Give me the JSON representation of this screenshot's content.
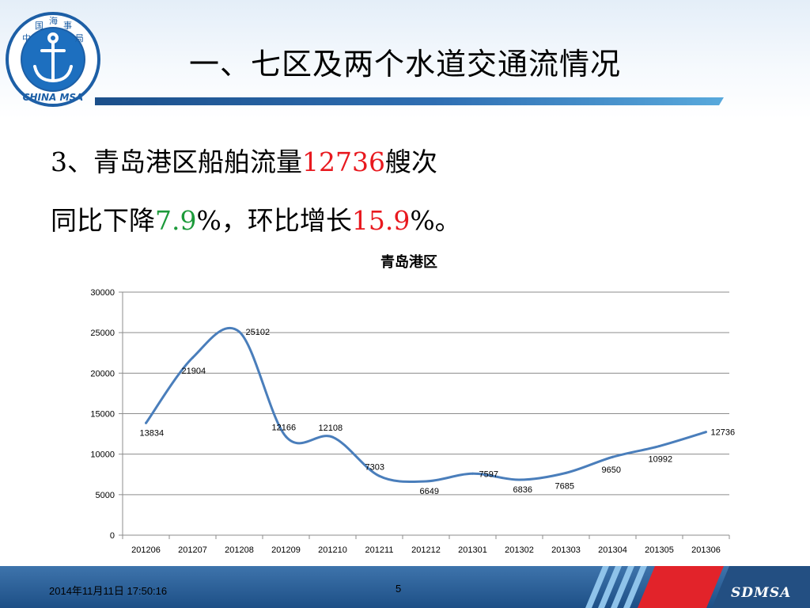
{
  "slide": {
    "title": "一、七区及两个水道交通流情况",
    "logo_text": "CHINA MSA",
    "logo_chars": [
      "中",
      "国",
      "海",
      "事",
      "局"
    ],
    "line1_prefix": "3、青岛港区船舶流量",
    "line1_value": "12736",
    "line1_suffix": "艘次",
    "line2_prefix": "同比下降",
    "line2_value1": "7.9",
    "line2_mid": "%，环比增长",
    "line2_value2": "15.9",
    "line2_suffix": "%。"
  },
  "footer": {
    "date": "2014年11月11日  17:50:16",
    "page": "5",
    "brand": "SDMSA"
  },
  "colors": {
    "accent_red": "#e8191f",
    "accent_green": "#1c9a3a",
    "line_color": "#4a7ebb",
    "footer_blue": "#1d4f86"
  },
  "chart_data": {
    "type": "line",
    "title": "青岛港区",
    "categories": [
      "201206",
      "201207",
      "201208",
      "201209",
      "201210",
      "201211",
      "201212",
      "201301",
      "201302",
      "201303",
      "201304",
      "201305",
      "201306"
    ],
    "values": [
      13834,
      21904,
      25102,
      12166,
      12108,
      7303,
      6649,
      7597,
      6836,
      7685,
      9650,
      10992,
      12736
    ],
    "yticks": [
      0,
      5000,
      10000,
      15000,
      20000,
      25000,
      30000
    ],
    "ylim": [
      0,
      30000
    ],
    "grid": true,
    "smooth": true,
    "data_labels": true,
    "legend": false
  }
}
